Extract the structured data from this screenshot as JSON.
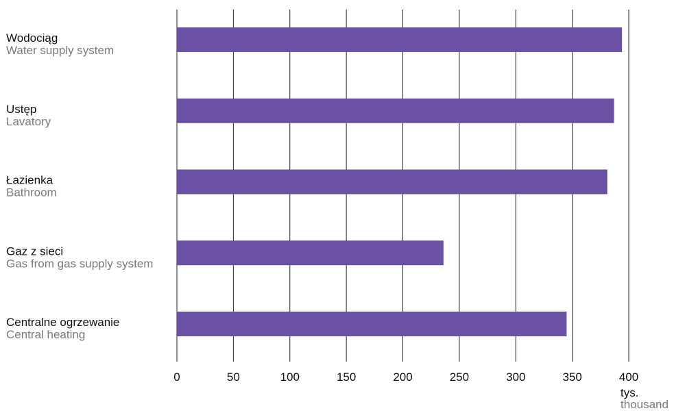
{
  "chart_data": {
    "type": "bar",
    "orientation": "horizontal",
    "categories": [
      {
        "label_pl": "Wodociąg",
        "label_en": "Water supply system"
      },
      {
        "label_pl": "Ustęp",
        "label_en": "Lavatory"
      },
      {
        "label_pl": "Łazienka",
        "label_en": "Bathroom"
      },
      {
        "label_pl": "Gaz z sieci",
        "label_en": "Gas from gas supply system"
      },
      {
        "label_pl": "Centralne ogrzewanie",
        "label_en": "Central heating"
      }
    ],
    "values": [
      394,
      387,
      381,
      236,
      345
    ],
    "xlim": [
      0,
      400
    ],
    "x_ticks": [
      "0",
      "50",
      "100",
      "150",
      "200",
      "250",
      "300",
      "350",
      "400"
    ],
    "unit_pl": "tys.",
    "unit_en": "thousand",
    "grid": "vertical",
    "colors": {
      "bar": "#6a51a3",
      "grid": "#222222",
      "label_primary": "#111111",
      "label_secondary": "#7a7a7a"
    }
  }
}
